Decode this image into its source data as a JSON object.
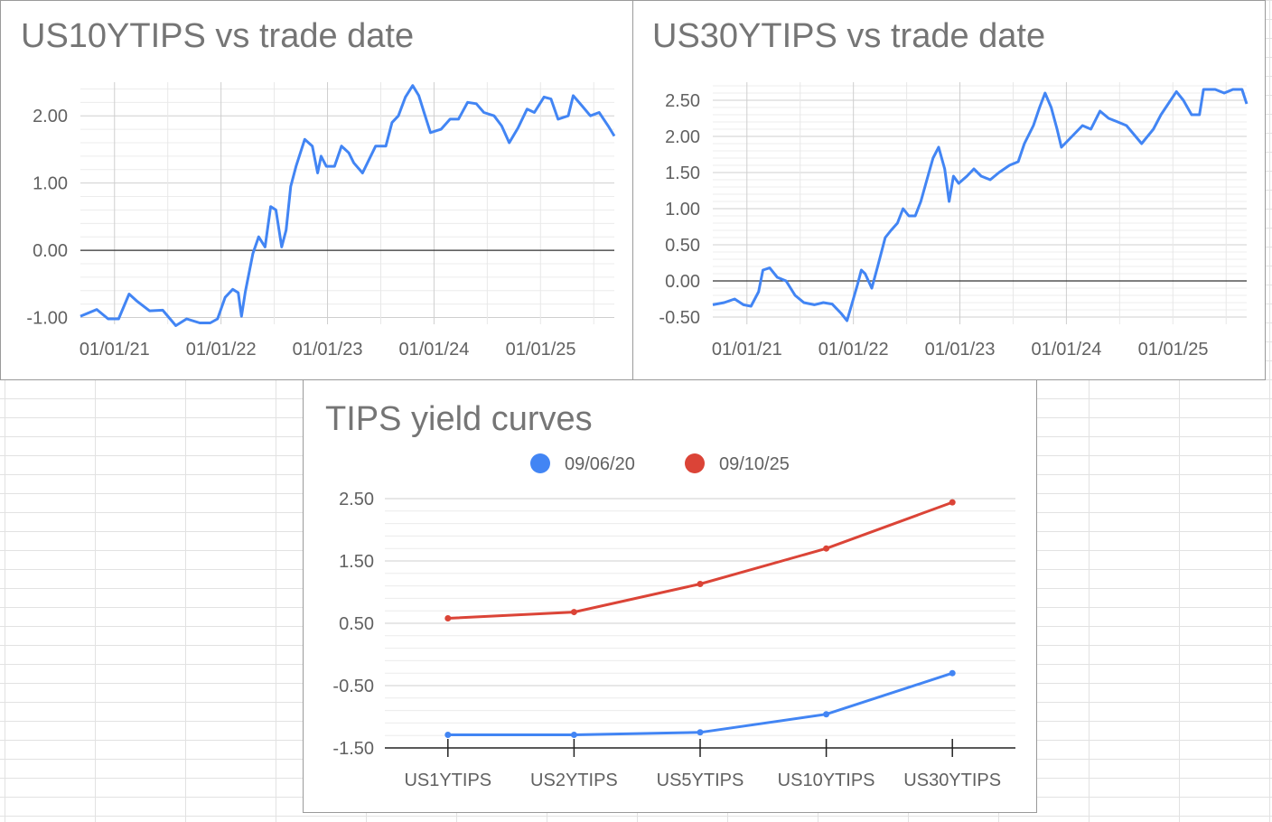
{
  "chart_data": [
    {
      "type": "line",
      "title": "US10YTIPS vs trade date",
      "xlabel": "",
      "ylabel": "",
      "x_tick_labels": [
        "01/01/21",
        "01/01/22",
        "01/01/23",
        "01/01/24",
        "01/01/25"
      ],
      "y_tick_labels": [
        "2.00",
        "1.00",
        "0.00",
        "-1.00"
      ],
      "ylim": [
        -1.1,
        2.5
      ],
      "xlim": [
        "2020-09-06",
        "2025-09-10"
      ],
      "series": [
        {
          "color": "#4285f4",
          "points": [
            [
              "2020-09-06",
              -0.98
            ],
            [
              "2020-11-01",
              -0.88
            ],
            [
              "2020-12-10",
              -1.02
            ],
            [
              "2021-01-15",
              -1.02
            ],
            [
              "2021-02-20",
              -0.65
            ],
            [
              "2021-03-20",
              -0.76
            ],
            [
              "2021-05-01",
              -0.9
            ],
            [
              "2021-06-15",
              -0.89
            ],
            [
              "2021-07-30",
              -1.12
            ],
            [
              "2021-09-05",
              -1.02
            ],
            [
              "2021-10-20",
              -1.08
            ],
            [
              "2021-11-25",
              -1.08
            ],
            [
              "2021-12-20",
              -1.02
            ],
            [
              "2022-01-15",
              -0.7
            ],
            [
              "2022-02-10",
              -0.58
            ],
            [
              "2022-03-01",
              -0.63
            ],
            [
              "2022-03-12",
              -0.98
            ],
            [
              "2022-03-25",
              -0.62
            ],
            [
              "2022-04-20",
              -0.05
            ],
            [
              "2022-05-10",
              0.2
            ],
            [
              "2022-06-01",
              0.05
            ],
            [
              "2022-06-20",
              0.65
            ],
            [
              "2022-07-08",
              0.6
            ],
            [
              "2022-07-28",
              0.05
            ],
            [
              "2022-08-12",
              0.3
            ],
            [
              "2022-08-28",
              0.95
            ],
            [
              "2022-09-15",
              1.25
            ],
            [
              "2022-10-15",
              1.65
            ],
            [
              "2022-11-10",
              1.55
            ],
            [
              "2022-11-28",
              1.15
            ],
            [
              "2022-12-10",
              1.4
            ],
            [
              "2022-12-28",
              1.25
            ],
            [
              "2023-01-25",
              1.25
            ],
            [
              "2023-02-18",
              1.55
            ],
            [
              "2023-03-15",
              1.45
            ],
            [
              "2023-04-01",
              1.3
            ],
            [
              "2023-05-01",
              1.15
            ],
            [
              "2023-06-15",
              1.55
            ],
            [
              "2023-07-20",
              1.55
            ],
            [
              "2023-08-10",
              1.9
            ],
            [
              "2023-09-01",
              2.0
            ],
            [
              "2023-09-25",
              2.28
            ],
            [
              "2023-10-20",
              2.45
            ],
            [
              "2023-11-10",
              2.3
            ],
            [
              "2023-11-28",
              2.05
            ],
            [
              "2023-12-20",
              1.75
            ],
            [
              "2024-01-25",
              1.8
            ],
            [
              "2024-02-25",
              1.95
            ],
            [
              "2024-03-25",
              1.95
            ],
            [
              "2024-04-25",
              2.2
            ],
            [
              "2024-05-25",
              2.18
            ],
            [
              "2024-06-20",
              2.05
            ],
            [
              "2024-07-25",
              2.0
            ],
            [
              "2024-08-20",
              1.85
            ],
            [
              "2024-09-15",
              1.6
            ],
            [
              "2024-10-15",
              1.82
            ],
            [
              "2024-11-15",
              2.1
            ],
            [
              "2024-12-10",
              2.05
            ],
            [
              "2025-01-12",
              2.28
            ],
            [
              "2025-02-05",
              2.25
            ],
            [
              "2025-03-01",
              1.95
            ],
            [
              "2025-04-05",
              2.0
            ],
            [
              "2025-04-22",
              2.3
            ],
            [
              "2025-05-22",
              2.15
            ],
            [
              "2025-06-20",
              2.0
            ],
            [
              "2025-07-20",
              2.05
            ],
            [
              "2025-08-20",
              1.85
            ],
            [
              "2025-09-10",
              1.7
            ]
          ]
        }
      ]
    },
    {
      "type": "line",
      "title": "US30YTIPS vs trade date",
      "xlabel": "",
      "ylabel": "",
      "x_tick_labels": [
        "01/01/21",
        "01/01/22",
        "01/01/23",
        "01/01/24",
        "01/01/25"
      ],
      "y_tick_labels": [
        "2.50",
        "2.00",
        "1.50",
        "1.00",
        "0.50",
        "0.00",
        "-0.50"
      ],
      "ylim": [
        -0.6,
        2.75
      ],
      "xlim": [
        "2020-09-06",
        "2025-09-10"
      ],
      "series": [
        {
          "color": "#4285f4",
          "points": [
            [
              "2020-09-06",
              -0.33
            ],
            [
              "2020-10-15",
              -0.3
            ],
            [
              "2020-11-20",
              -0.25
            ],
            [
              "2020-12-20",
              -0.33
            ],
            [
              "2021-01-15",
              -0.35
            ],
            [
              "2021-02-10",
              -0.15
            ],
            [
              "2021-02-25",
              0.15
            ],
            [
              "2021-03-20",
              0.18
            ],
            [
              "2021-04-15",
              0.05
            ],
            [
              "2021-05-15",
              0.0
            ],
            [
              "2021-06-15",
              -0.2
            ],
            [
              "2021-07-15",
              -0.3
            ],
            [
              "2021-08-20",
              -0.33
            ],
            [
              "2021-09-20",
              -0.3
            ],
            [
              "2021-10-20",
              -0.32
            ],
            [
              "2021-11-20",
              -0.45
            ],
            [
              "2021-12-10",
              -0.55
            ],
            [
              "2021-12-28",
              -0.3
            ],
            [
              "2022-01-15",
              -0.05
            ],
            [
              "2022-01-28",
              0.15
            ],
            [
              "2022-02-10",
              0.1
            ],
            [
              "2022-03-05",
              -0.1
            ],
            [
              "2022-03-25",
              0.2
            ],
            [
              "2022-04-20",
              0.6
            ],
            [
              "2022-05-10",
              0.7
            ],
            [
              "2022-06-01",
              0.8
            ],
            [
              "2022-06-20",
              1.0
            ],
            [
              "2022-07-10",
              0.9
            ],
            [
              "2022-08-01",
              0.9
            ],
            [
              "2022-08-20",
              1.1
            ],
            [
              "2022-09-10",
              1.4
            ],
            [
              "2022-10-01",
              1.7
            ],
            [
              "2022-10-20",
              1.85
            ],
            [
              "2022-11-10",
              1.55
            ],
            [
              "2022-11-25",
              1.1
            ],
            [
              "2022-12-10",
              1.45
            ],
            [
              "2022-12-28",
              1.35
            ],
            [
              "2023-01-25",
              1.45
            ],
            [
              "2023-02-18",
              1.55
            ],
            [
              "2023-03-15",
              1.45
            ],
            [
              "2023-04-15",
              1.4
            ],
            [
              "2023-05-15",
              1.5
            ],
            [
              "2023-06-20",
              1.6
            ],
            [
              "2023-07-20",
              1.65
            ],
            [
              "2023-08-10",
              1.9
            ],
            [
              "2023-09-10",
              2.15
            ],
            [
              "2023-10-01",
              2.4
            ],
            [
              "2023-10-20",
              2.6
            ],
            [
              "2023-11-10",
              2.4
            ],
            [
              "2023-11-30",
              2.1
            ],
            [
              "2023-12-15",
              1.85
            ],
            [
              "2024-01-20",
              2.0
            ],
            [
              "2024-02-25",
              2.15
            ],
            [
              "2024-03-25",
              2.1
            ],
            [
              "2024-04-25",
              2.35
            ],
            [
              "2024-05-25",
              2.25
            ],
            [
              "2024-06-25",
              2.2
            ],
            [
              "2024-07-25",
              2.15
            ],
            [
              "2024-08-25",
              2.0
            ],
            [
              "2024-09-15",
              1.9
            ],
            [
              "2024-10-25",
              2.1
            ],
            [
              "2024-11-20",
              2.3
            ],
            [
              "2024-12-15",
              2.45
            ],
            [
              "2025-01-12",
              2.62
            ],
            [
              "2025-02-05",
              2.5
            ],
            [
              "2025-03-05",
              2.3
            ],
            [
              "2025-04-01",
              2.3
            ],
            [
              "2025-04-15",
              2.65
            ],
            [
              "2025-05-25",
              2.65
            ],
            [
              "2025-06-25",
              2.6
            ],
            [
              "2025-07-25",
              2.65
            ],
            [
              "2025-08-25",
              2.65
            ],
            [
              "2025-09-10",
              2.45
            ]
          ]
        }
      ]
    },
    {
      "type": "line",
      "title": "TIPS yield curves",
      "xlabel": "",
      "ylabel": "",
      "categories": [
        "US1YTIPS",
        "US2YTIPS",
        "US5YTIPS",
        "US10YTIPS",
        "US30YTIPS"
      ],
      "y_tick_labels": [
        "2.50",
        "1.50",
        "0.50",
        "-0.50",
        "-1.50"
      ],
      "ylim": [
        -1.5,
        2.5
      ],
      "legend_position": "top",
      "series": [
        {
          "name": "09/06/20",
          "color": "#4285f4",
          "values": [
            -1.29,
            -1.29,
            -1.25,
            -0.96,
            -0.3
          ]
        },
        {
          "name": "09/10/25",
          "color": "#db4437",
          "values": [
            0.58,
            0.68,
            1.13,
            1.7,
            2.44
          ]
        }
      ]
    }
  ]
}
